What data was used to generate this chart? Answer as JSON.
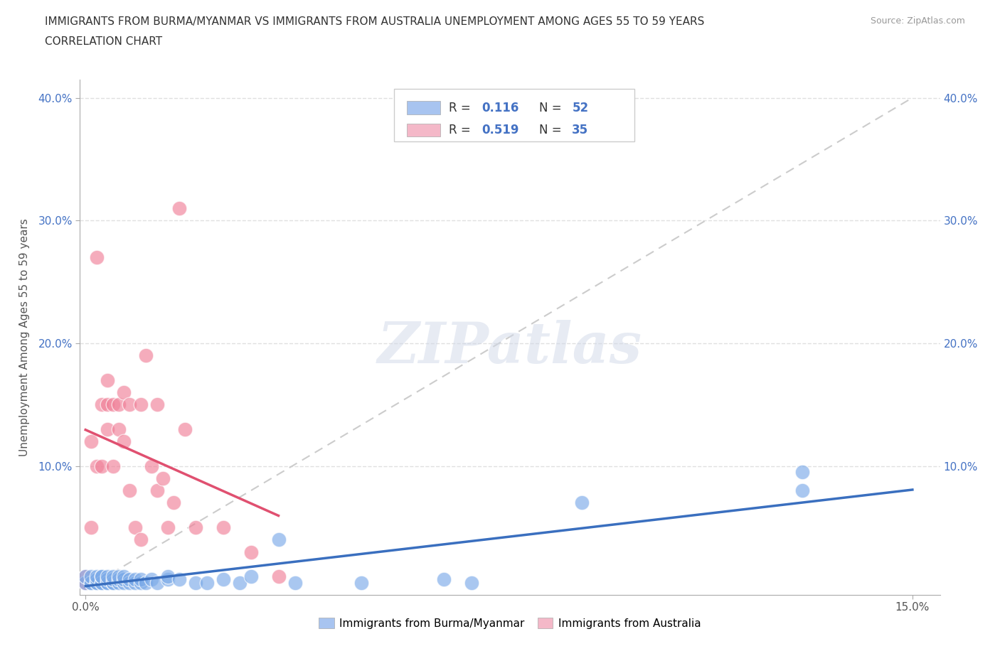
{
  "title_line1": "IMMIGRANTS FROM BURMA/MYANMAR VS IMMIGRANTS FROM AUSTRALIA UNEMPLOYMENT AMONG AGES 55 TO 59 YEARS",
  "title_line2": "CORRELATION CHART",
  "source": "Source: ZipAtlas.com",
  "xlabel": "Immigrants from Burma/Myanmar",
  "ylabel": "Unemployment Among Ages 55 to 59 years",
  "xlim": [
    -0.001,
    0.155
  ],
  "ylim": [
    -0.005,
    0.415
  ],
  "xtick_positions": [
    0.0,
    0.15
  ],
  "xtick_labels": [
    "0.0%",
    "15.0%"
  ],
  "ytick_positions": [
    0.1,
    0.2,
    0.3,
    0.4
  ],
  "ytick_labels": [
    "10.0%",
    "20.0%",
    "30.0%",
    "40.0%"
  ],
  "blue_scatter_color": "#7baae8",
  "pink_scatter_color": "#f08098",
  "blue_legend_color": "#a8c4f0",
  "pink_legend_color": "#f4b8c8",
  "trendline_blue": "#3a6fbf",
  "trendline_pink": "#e05070",
  "watermark": "ZIPatlas",
  "legend_label_blue": "Immigrants from Burma/Myanmar",
  "legend_label_pink": "Immigrants from Australia",
  "diag_line_color": "#cccccc",
  "grid_color": "#e0e0e0",
  "blue_scatter_x": [
    0.0,
    0.0,
    0.001,
    0.001,
    0.001,
    0.002,
    0.002,
    0.002,
    0.002,
    0.003,
    0.003,
    0.003,
    0.003,
    0.004,
    0.004,
    0.004,
    0.004,
    0.005,
    0.005,
    0.005,
    0.005,
    0.006,
    0.006,
    0.006,
    0.007,
    0.007,
    0.007,
    0.008,
    0.008,
    0.009,
    0.009,
    0.01,
    0.01,
    0.011,
    0.012,
    0.013,
    0.015,
    0.015,
    0.017,
    0.02,
    0.022,
    0.025,
    0.028,
    0.03,
    0.035,
    0.038,
    0.05,
    0.065,
    0.07,
    0.09,
    0.13,
    0.13
  ],
  "blue_scatter_y": [
    0.005,
    0.01,
    0.005,
    0.005,
    0.01,
    0.005,
    0.005,
    0.008,
    0.01,
    0.005,
    0.005,
    0.01,
    0.01,
    0.005,
    0.005,
    0.008,
    0.01,
    0.005,
    0.005,
    0.008,
    0.01,
    0.005,
    0.008,
    0.01,
    0.005,
    0.008,
    0.01,
    0.005,
    0.008,
    0.005,
    0.008,
    0.005,
    0.008,
    0.005,
    0.008,
    0.005,
    0.008,
    0.01,
    0.008,
    0.005,
    0.005,
    0.008,
    0.005,
    0.01,
    0.04,
    0.005,
    0.005,
    0.008,
    0.005,
    0.07,
    0.08,
    0.095
  ],
  "pink_scatter_x": [
    0.0,
    0.0,
    0.001,
    0.001,
    0.002,
    0.002,
    0.003,
    0.003,
    0.004,
    0.004,
    0.004,
    0.005,
    0.005,
    0.006,
    0.006,
    0.007,
    0.007,
    0.008,
    0.008,
    0.009,
    0.01,
    0.01,
    0.011,
    0.012,
    0.013,
    0.013,
    0.014,
    0.015,
    0.016,
    0.017,
    0.018,
    0.02,
    0.025,
    0.03,
    0.035
  ],
  "pink_scatter_y": [
    0.005,
    0.01,
    0.05,
    0.12,
    0.1,
    0.27,
    0.1,
    0.15,
    0.13,
    0.15,
    0.17,
    0.1,
    0.15,
    0.13,
    0.15,
    0.12,
    0.16,
    0.08,
    0.15,
    0.05,
    0.04,
    0.15,
    0.19,
    0.1,
    0.08,
    0.15,
    0.09,
    0.05,
    0.07,
    0.31,
    0.13,
    0.05,
    0.05,
    0.03,
    0.01
  ]
}
